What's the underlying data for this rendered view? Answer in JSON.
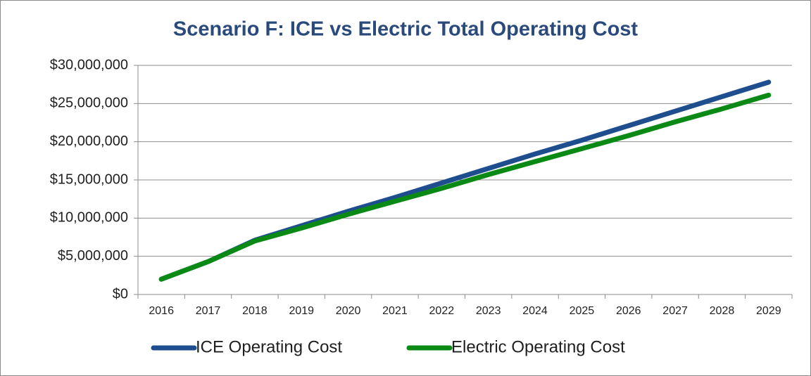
{
  "chart_data": {
    "type": "line",
    "title": "Scenario F: ICE vs Electric Total Operating Cost",
    "categories": [
      "2016",
      "2017",
      "2018",
      "2019",
      "2020",
      "2021",
      "2022",
      "2023",
      "2024",
      "2025",
      "2026",
      "2027",
      "2028",
      "2029"
    ],
    "series": [
      {
        "name": "ICE Operating Cost",
        "color": "#1f4e8f",
        "values": [
          2000000,
          4300000,
          7100000,
          9000000,
          10900000,
          12700000,
          14600000,
          16500000,
          18400000,
          20200000,
          22100000,
          24000000,
          25900000,
          27800000
        ]
      },
      {
        "name": "Electric Operating Cost",
        "color": "#0a8a14",
        "values": [
          2000000,
          4300000,
          7000000,
          8700000,
          10500000,
          12200000,
          13900000,
          15700000,
          17400000,
          19100000,
          20800000,
          22600000,
          24300000,
          26100000
        ]
      }
    ],
    "ylim": [
      0,
      30000000
    ],
    "yticks": [
      {
        "value": 0,
        "label": "$0"
      },
      {
        "value": 5000000,
        "label": "$5,000,000"
      },
      {
        "value": 10000000,
        "label": "$10,000,000"
      },
      {
        "value": 15000000,
        "label": "$15,000,000"
      },
      {
        "value": 20000000,
        "label": "$20,000,000"
      },
      {
        "value": 25000000,
        "label": "$25,000,000"
      },
      {
        "value": 30000000,
        "label": "$30,000,000"
      }
    ],
    "grid": true,
    "legend": "bottom"
  }
}
